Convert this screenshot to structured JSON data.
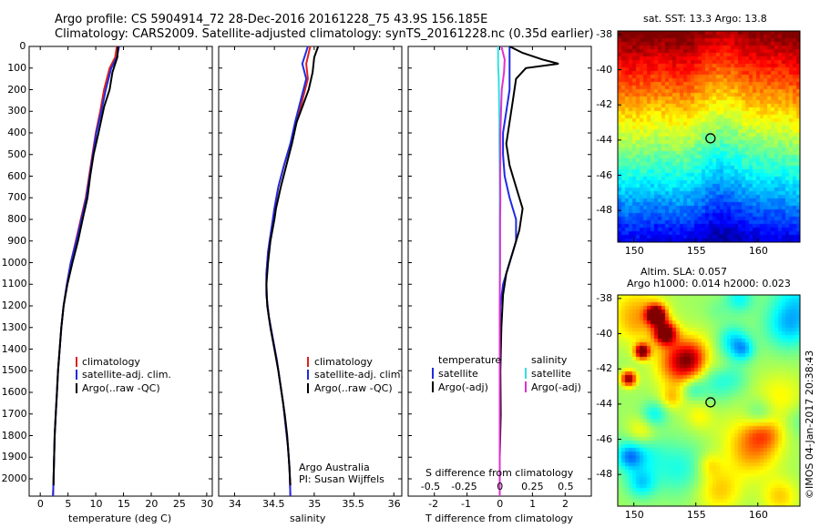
{
  "header": {
    "line1": "Argo profile: CS 5904914_72 28-Dec-2016 20161228_75 43.9S 156.185E",
    "line2": "Climatology: CARS2009. Satellite-adjusted climatology: synTS_20161228.nc (0.35d earlier)"
  },
  "colors": {
    "climatology": "#e0201b",
    "satellite": "#1f2be0",
    "argo": "#000000",
    "salinity_sat": "#33e0e0",
    "salinity_argo": "#e030d0"
  },
  "depth_ticks": [
    "0",
    "100",
    "200",
    "300",
    "400",
    "500",
    "600",
    "700",
    "800",
    "900",
    "1000",
    "1100",
    "1200",
    "1300",
    "1400",
    "1500",
    "1600",
    "1700",
    "1800",
    "1900",
    "2000"
  ],
  "panel1": {
    "xlabel": "temperature (deg C)",
    "xticks": [
      "0",
      "5",
      "10",
      "15",
      "20",
      "25",
      "30"
    ],
    "legend": [
      "climatology",
      "satellite-adj. clim.",
      "Argo(..raw -QC)"
    ]
  },
  "panel2": {
    "xlabel": "salinity",
    "xticks": [
      "34",
      "34.5",
      "35",
      "35.5",
      "36"
    ],
    "legend": [
      "climatology",
      "satellite-adj. clim.",
      "Argo(..raw -QC)"
    ],
    "credit1": "Argo Australia",
    "credit2": "PI: Susan Wijffels"
  },
  "panel3": {
    "xlabel": "T difference from climatology",
    "xticks": [
      "-2",
      "-1",
      "0",
      "1",
      "2"
    ],
    "top_label": "S difference from climatology",
    "top_ticks": [
      "-0.5",
      "-0.25",
      "0",
      "0.25",
      "0.5"
    ],
    "legend_t_title": "temperature",
    "legend_s_title": "salinity",
    "legend_t": [
      "satellite",
      "Argo(-adj)"
    ],
    "legend_s": [
      "satellite",
      "Argo(-adj)"
    ]
  },
  "map_sst": {
    "title": "sat. SST: 13.3 Argo: 13.8",
    "yticks": [
      "-38",
      "-40",
      "-42",
      "-44",
      "-46",
      "-48"
    ],
    "xticks": [
      "150",
      "155",
      "160"
    ],
    "marker": {
      "lon": 156.185,
      "lat": -43.9
    }
  },
  "map_sla": {
    "title1": "Altim. SLA: 0.057",
    "title2": "Argo h1000: 0.014 h2000: 0.023",
    "yticks": [
      "-38",
      "-40",
      "-42",
      "-44",
      "-46",
      "-48"
    ],
    "xticks": [
      "150",
      "155",
      "160"
    ],
    "marker": {
      "lon": 156.185,
      "lat": -43.9
    }
  },
  "credit_vertical": "©IMOS 04-Jan-2017 20:38:43",
  "chart_data": [
    {
      "type": "line",
      "xlabel": "temperature (deg C)",
      "ylabel": "",
      "xlim": [
        -2,
        31
      ],
      "ylim": [
        2080,
        0
      ],
      "series": [
        {
          "name": "climatology",
          "points": [
            [
              13.8,
              0
            ],
            [
              13.5,
              50
            ],
            [
              12.5,
              100
            ],
            [
              11.5,
              200
            ],
            [
              10.8,
              300
            ],
            [
              10,
              400
            ],
            [
              9.4,
              500
            ],
            [
              8.8,
              600
            ],
            [
              8.2,
              700
            ],
            [
              7.3,
              800
            ],
            [
              6.4,
              900
            ],
            [
              5.5,
              1000
            ],
            [
              4.8,
              1100
            ],
            [
              4.2,
              1200
            ],
            [
              3.8,
              1300
            ],
            [
              3.5,
              1400
            ],
            [
              3.2,
              1500
            ],
            [
              3,
              1600
            ],
            [
              2.8,
              1700
            ],
            [
              2.6,
              1800
            ],
            [
              2.5,
              1900
            ],
            [
              2.4,
              2000
            ],
            [
              2.3,
              2080
            ]
          ]
        },
        {
          "name": "satellite-adj. clim.",
          "points": [
            [
              14.2,
              0
            ],
            [
              13.8,
              50
            ],
            [
              12.8,
              100
            ],
            [
              11.8,
              200
            ],
            [
              11,
              300
            ],
            [
              10.1,
              400
            ],
            [
              9.5,
              500
            ],
            [
              8.9,
              600
            ],
            [
              8.3,
              700
            ],
            [
              7.4,
              800
            ],
            [
              6.5,
              900
            ],
            [
              5.5,
              1000
            ],
            [
              4.8,
              1100
            ],
            [
              4.2,
              1200
            ],
            [
              3.8,
              1300
            ],
            [
              3.5,
              1400
            ],
            [
              3.2,
              1500
            ],
            [
              3,
              1600
            ],
            [
              2.8,
              1700
            ],
            [
              2.6,
              1800
            ],
            [
              2.5,
              1900
            ],
            [
              2.4,
              2000
            ],
            [
              2.3,
              2080
            ]
          ]
        },
        {
          "name": "Argo(..raw -QC)",
          "points": [
            [
              14,
              0
            ],
            [
              13.9,
              50
            ],
            [
              13.5,
              80
            ],
            [
              13,
              120
            ],
            [
              12.5,
              200
            ],
            [
              11.5,
              280
            ],
            [
              10.5,
              400
            ],
            [
              9.6,
              500
            ],
            [
              9,
              600
            ],
            [
              8.5,
              700
            ],
            [
              7.8,
              780
            ],
            [
              6.8,
              900
            ],
            [
              5.8,
              1000
            ],
            [
              4.9,
              1100
            ],
            [
              4.2,
              1200
            ],
            [
              3.8,
              1300
            ],
            [
              3.5,
              1400
            ],
            [
              3.2,
              1500
            ],
            [
              3,
              1600
            ],
            [
              2.8,
              1700
            ],
            [
              2.6,
              1800
            ],
            [
              2.5,
              1900
            ],
            [
              2.4,
              2000
            ],
            [
              2.4,
              2030
            ]
          ]
        }
      ]
    },
    {
      "type": "line",
      "xlabel": "salinity",
      "ylabel": "",
      "xlim": [
        33.8,
        36.1
      ],
      "ylim": [
        2080,
        0
      ],
      "series": [
        {
          "name": "climatology",
          "points": [
            [
              34.95,
              0
            ],
            [
              34.9,
              80
            ],
            [
              34.92,
              150
            ],
            [
              34.85,
              250
            ],
            [
              34.78,
              350
            ],
            [
              34.7,
              450
            ],
            [
              34.62,
              550
            ],
            [
              34.55,
              650
            ],
            [
              34.5,
              750
            ],
            [
              34.46,
              850
            ],
            [
              34.42,
              950
            ],
            [
              34.4,
              1050
            ],
            [
              34.4,
              1150
            ],
            [
              34.43,
              1250
            ],
            [
              34.48,
              1350
            ],
            [
              34.53,
              1450
            ],
            [
              34.57,
              1550
            ],
            [
              34.61,
              1650
            ],
            [
              34.64,
              1750
            ],
            [
              34.67,
              1850
            ],
            [
              34.69,
              1950
            ],
            [
              34.7,
              2080
            ]
          ]
        },
        {
          "name": "satellite-adj. clim.",
          "points": [
            [
              34.92,
              0
            ],
            [
              34.85,
              80
            ],
            [
              34.9,
              150
            ],
            [
              34.83,
              250
            ],
            [
              34.76,
              350
            ],
            [
              34.7,
              450
            ],
            [
              34.62,
              550
            ],
            [
              34.55,
              650
            ],
            [
              34.5,
              750
            ],
            [
              34.46,
              850
            ],
            [
              34.42,
              950
            ],
            [
              34.4,
              1050
            ],
            [
              34.4,
              1150
            ],
            [
              34.43,
              1250
            ],
            [
              34.48,
              1350
            ],
            [
              34.53,
              1450
            ],
            [
              34.57,
              1550
            ],
            [
              34.61,
              1650
            ],
            [
              34.64,
              1750
            ],
            [
              34.67,
              1850
            ],
            [
              34.69,
              1950
            ],
            [
              34.7,
              2080
            ]
          ]
        },
        {
          "name": "Argo(..raw -QC)",
          "points": [
            [
              35.05,
              0
            ],
            [
              35,
              50
            ],
            [
              34.98,
              120
            ],
            [
              34.93,
              200
            ],
            [
              34.85,
              280
            ],
            [
              34.78,
              350
            ],
            [
              34.72,
              450
            ],
            [
              34.65,
              550
            ],
            [
              34.58,
              650
            ],
            [
              34.52,
              750
            ],
            [
              34.5,
              800
            ],
            [
              34.45,
              900
            ],
            [
              34.42,
              1000
            ],
            [
              34.4,
              1100
            ],
            [
              34.41,
              1200
            ],
            [
              34.45,
              1300
            ],
            [
              34.5,
              1400
            ],
            [
              34.55,
              1500
            ],
            [
              34.59,
              1600
            ],
            [
              34.63,
              1700
            ],
            [
              34.66,
              1800
            ],
            [
              34.68,
              1900
            ],
            [
              34.7,
              2030
            ]
          ]
        }
      ]
    },
    {
      "type": "line",
      "xlabel": "T difference from climatology",
      "ylabel": "",
      "xlim": [
        -2.8,
        2.8
      ],
      "ylim": [
        2080,
        0
      ],
      "series": [
        {
          "name": "temperature satellite",
          "points": [
            [
              0.3,
              0
            ],
            [
              0.3,
              50
            ],
            [
              0.3,
              100
            ],
            [
              0.3,
              200
            ],
            [
              0.2,
              300
            ],
            [
              0.1,
              400
            ],
            [
              0.1,
              500
            ],
            [
              0.15,
              600
            ],
            [
              0.3,
              700
            ],
            [
              0.5,
              800
            ],
            [
              0.5,
              900
            ],
            [
              0.3,
              1000
            ],
            [
              0.1,
              1100
            ],
            [
              0.02,
              1200
            ],
            [
              0,
              1400
            ],
            [
              0,
              1600
            ],
            [
              0,
              1800
            ],
            [
              0,
              2080
            ]
          ]
        },
        {
          "name": "temperature Argo(-adj)",
          "points": [
            [
              0.3,
              0
            ],
            [
              0.7,
              30
            ],
            [
              1.3,
              60
            ],
            [
              1.8,
              80
            ],
            [
              0.8,
              100
            ],
            [
              0.5,
              150
            ],
            [
              0.4,
              250
            ],
            [
              0.3,
              350
            ],
            [
              0.2,
              450
            ],
            [
              0.3,
              550
            ],
            [
              0.5,
              650
            ],
            [
              0.7,
              750
            ],
            [
              0.6,
              850
            ],
            [
              0.4,
              950
            ],
            [
              0.2,
              1050
            ],
            [
              0.1,
              1150
            ],
            [
              0.05,
              1300
            ],
            [
              0.02,
              1500
            ],
            [
              0.03,
              1700
            ],
            [
              0,
              1900
            ],
            [
              0,
              2080
            ]
          ]
        },
        {
          "name": "salinity satellite",
          "points": [
            [
              -0.05,
              0
            ],
            [
              -0.05,
              80
            ],
            [
              -0.03,
              150
            ],
            [
              -0.02,
              250
            ],
            [
              -0.01,
              350
            ],
            [
              -0.01,
              450
            ],
            [
              0,
              600
            ],
            [
              0,
              900
            ],
            [
              0,
              1200
            ],
            [
              0,
              1600
            ],
            [
              0,
              2080
            ]
          ]
        },
        {
          "name": "salinity Argo(-adj)",
          "points": [
            [
              0.05,
              0
            ],
            [
              0.15,
              60
            ],
            [
              0.13,
              120
            ],
            [
              0.06,
              200
            ],
            [
              0.04,
              300
            ],
            [
              0.02,
              400
            ],
            [
              0.02,
              500
            ],
            [
              0.01,
              600
            ],
            [
              0.02,
              700
            ],
            [
              0.01,
              800
            ],
            [
              0.01,
              1000
            ],
            [
              0,
              1200
            ],
            [
              0,
              1400
            ],
            [
              0,
              2080
            ]
          ]
        }
      ]
    }
  ]
}
